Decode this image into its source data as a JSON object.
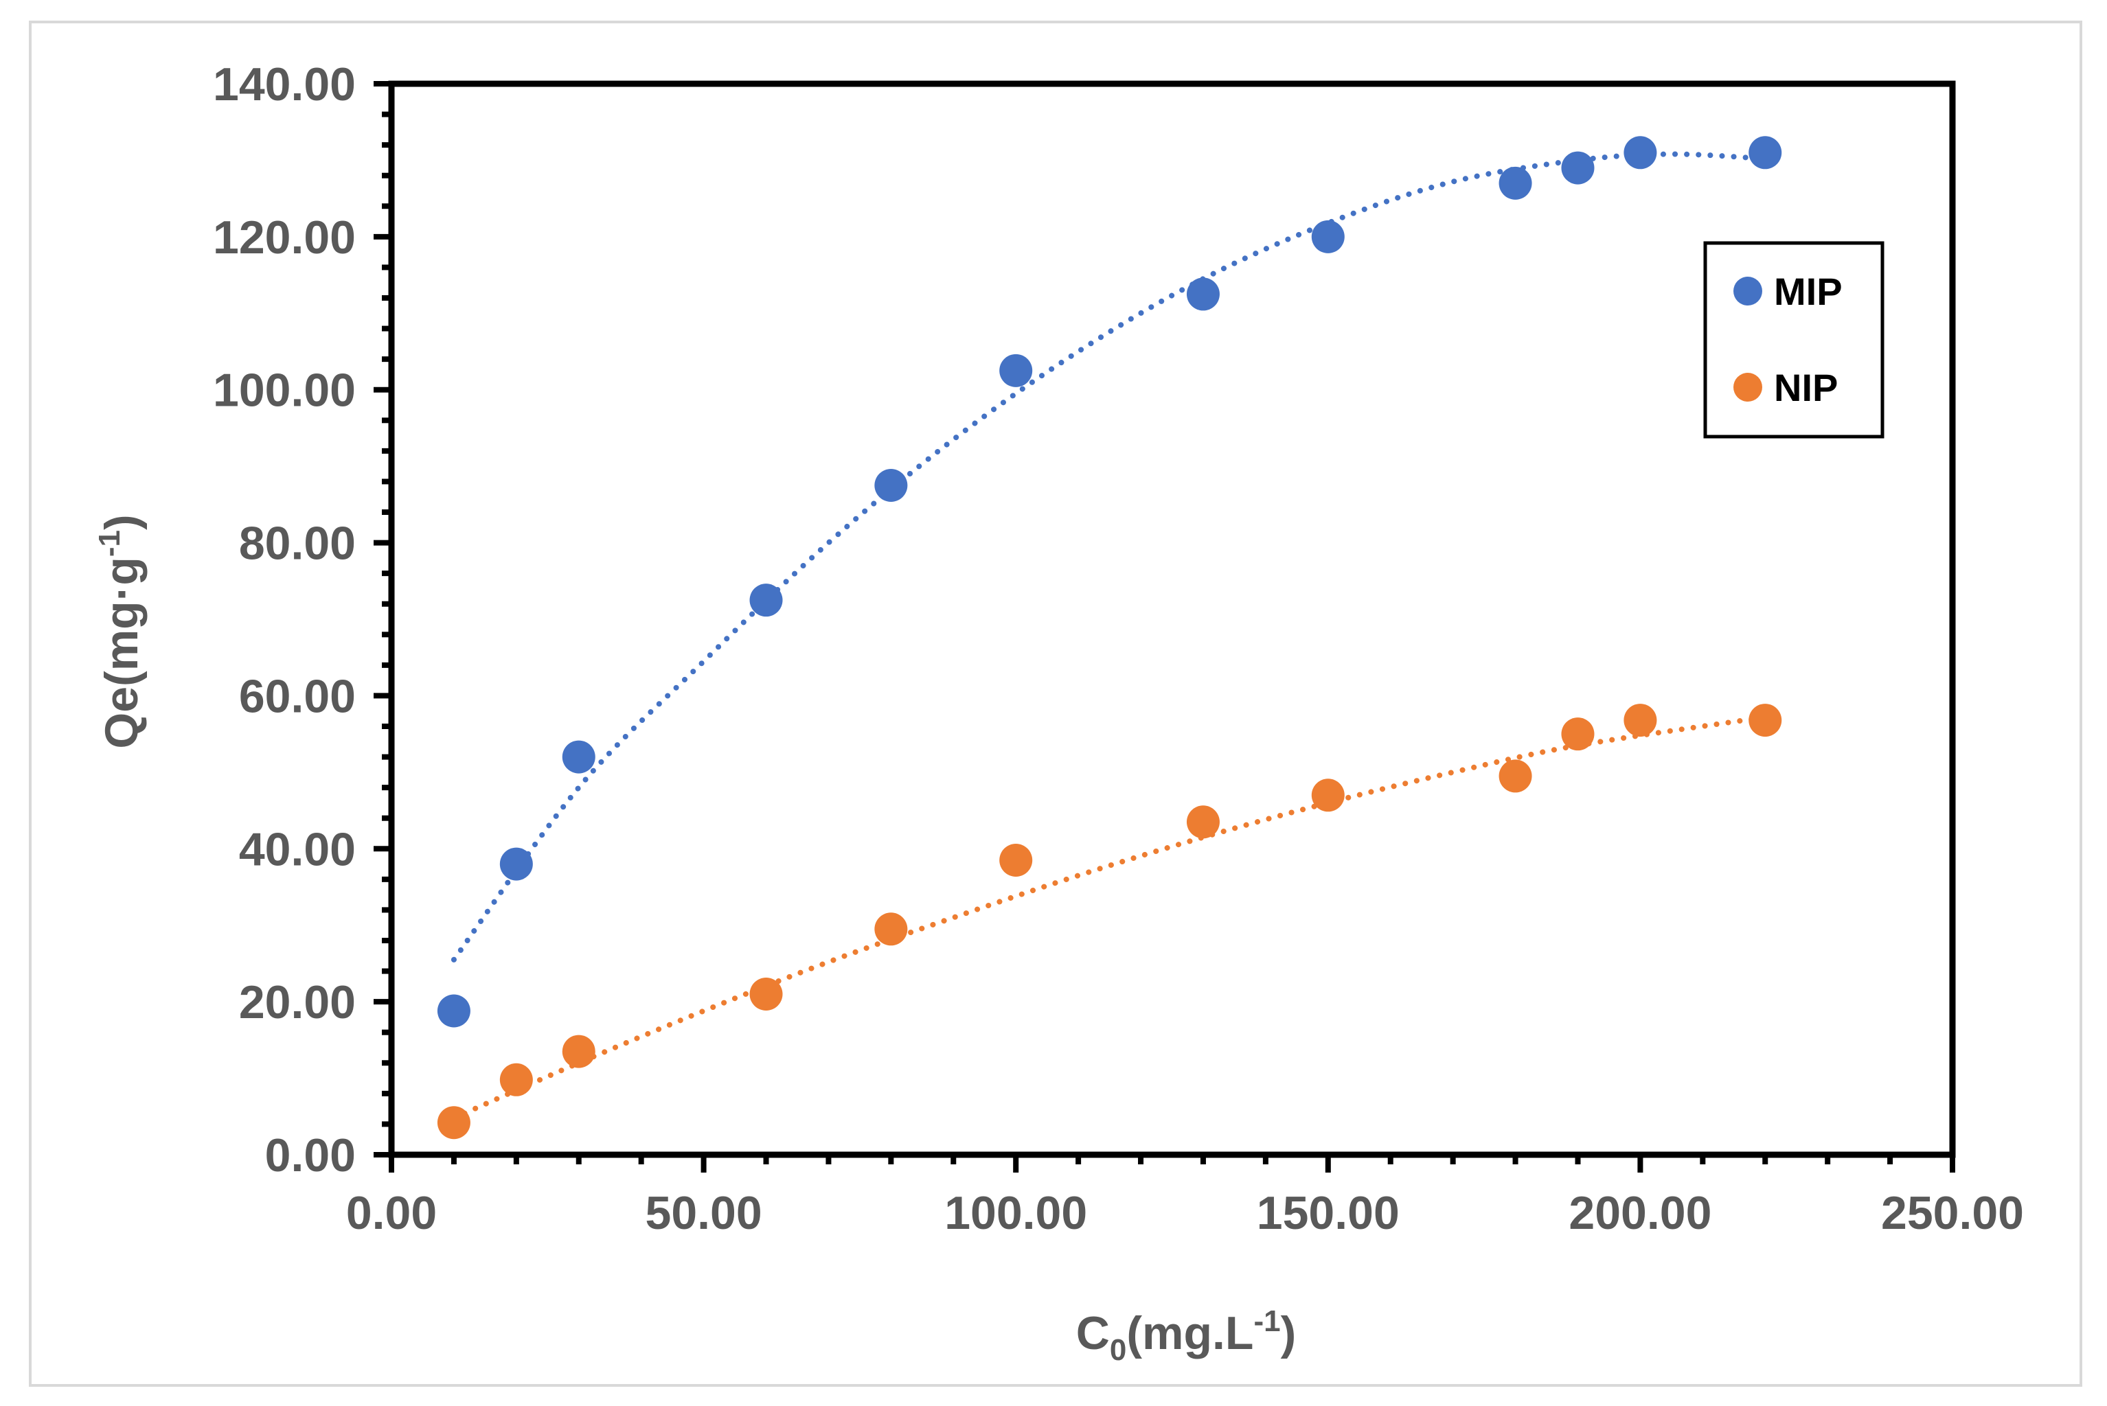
{
  "chart_data": {
    "type": "scatter",
    "title": "",
    "xlabel": {
      "main": "C",
      "sub": "0",
      "unit_open": "(mg.L",
      "sup": "-1",
      "unit_close": ")"
    },
    "ylabel": {
      "main": "Qe(mg·g",
      "sup": "-1",
      "close": ")"
    },
    "xlim": [
      0,
      250
    ],
    "ylim": [
      0,
      140
    ],
    "x_ticks": [
      "0.00",
      "50.00",
      "100.00",
      "150.00",
      "200.00",
      "250.00"
    ],
    "y_ticks": [
      "0.00",
      "20.00",
      "40.00",
      "60.00",
      "80.00",
      "100.00",
      "120.00",
      "140.00"
    ],
    "x_tick_values": [
      0,
      50,
      100,
      150,
      200,
      250
    ],
    "y_tick_values": [
      0,
      20,
      40,
      60,
      80,
      100,
      120,
      140
    ],
    "legend_position": "top-right",
    "grid": false,
    "series": [
      {
        "name": "MIP",
        "color": "#4472C4",
        "x": [
          10,
          20,
          30,
          60,
          80,
          100,
          130,
          150,
          180,
          190,
          200,
          220
        ],
        "y": [
          18.8,
          38.0,
          52.0,
          72.5,
          87.5,
          102.5,
          112.5,
          120.0,
          127.0,
          129.0,
          131.0,
          131.0
        ],
        "trendline": {
          "type": "polynomial",
          "dotted": true,
          "x": [
            10,
            30,
            50,
            70,
            90,
            110,
            130,
            150,
            170,
            190,
            205,
            220
          ],
          "y": [
            25.5,
            48.0,
            64.5,
            80.0,
            93.5,
            105.0,
            114.5,
            121.8,
            127.2,
            130.0,
            130.8,
            130.2
          ]
        }
      },
      {
        "name": "NIP",
        "color": "#ED7D31",
        "x": [
          10,
          20,
          30,
          60,
          80,
          100,
          130,
          150,
          180,
          190,
          200,
          220
        ],
        "y": [
          4.2,
          9.8,
          13.5,
          21.0,
          29.5,
          38.5,
          43.5,
          47.0,
          49.5,
          55.0,
          56.8,
          56.8
        ],
        "trendline": {
          "type": "polynomial",
          "dotted": true,
          "x": [
            10,
            30,
            50,
            70,
            90,
            110,
            130,
            150,
            170,
            190,
            220
          ],
          "y": [
            4.8,
            12.0,
            18.8,
            25.2,
            31.0,
            36.5,
            41.5,
            46.0,
            50.0,
            53.5,
            57.2
          ]
        }
      }
    ]
  }
}
